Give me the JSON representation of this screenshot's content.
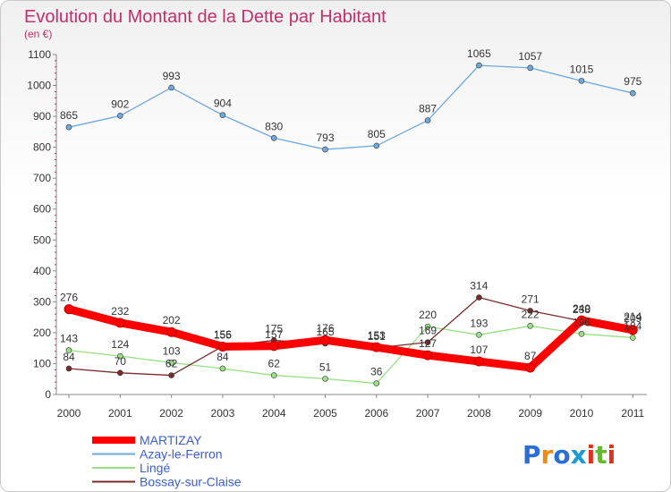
{
  "chart_data": {
    "type": "line",
    "title": "Evolution du Montant de la Dette par Habitant",
    "subtitle": "(en €)",
    "x": [
      "2000",
      "2001",
      "2002",
      "2003",
      "2004",
      "2005",
      "2006",
      "2007",
      "2008",
      "2009",
      "2010",
      "2011"
    ],
    "ylim": [
      0,
      1100
    ],
    "yticks": [
      0,
      100,
      200,
      300,
      400,
      500,
      600,
      700,
      800,
      900,
      1000,
      1100
    ],
    "grid": false,
    "legend_position": "bottom-left",
    "series": [
      {
        "name": "MARTIZAY",
        "color": "#ff0000",
        "values": [
          276,
          232,
          202,
          155,
          157,
          176,
          153,
          127,
          107,
          87,
          240,
          209
        ]
      },
      {
        "name": "Azay-le-Ferron",
        "color": "#6fa8dc",
        "values": [
          865,
          902,
          993,
          904,
          830,
          793,
          805,
          887,
          1065,
          1057,
          1015,
          975
        ]
      },
      {
        "name": "Lingé",
        "color": "#99e085",
        "values": [
          143,
          124,
          103,
          84,
          62,
          51,
          36,
          220,
          193,
          222,
          196,
          184
        ]
      },
      {
        "name": "Bossay-sur-Claise",
        "color": "#7b2b2b",
        "values": [
          84,
          70,
          62,
          156,
          175,
          165,
          151,
          169,
          314,
          271,
          238,
          214
        ]
      }
    ]
  },
  "logo_text": "Proxiti",
  "logo_colors": [
    "#2a6fd6",
    "#f08a16",
    "#2a6fd6",
    "#1a9bd8",
    "#e0301e",
    "#66b832",
    "#e0301e"
  ]
}
